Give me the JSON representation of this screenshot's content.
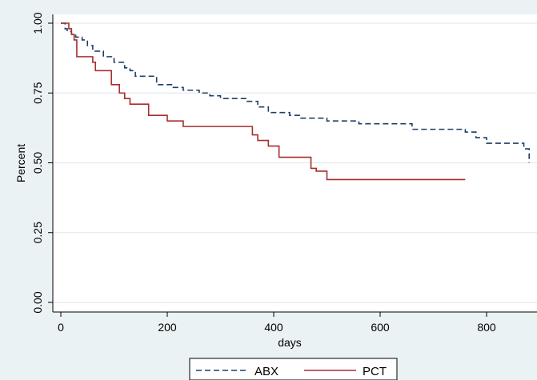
{
  "chart_data": {
    "type": "line",
    "title": "",
    "xlabel": "days",
    "ylabel": "Percent",
    "xlim": [
      0,
      880
    ],
    "ylim": [
      0,
      1
    ],
    "x_ticks": [
      "0",
      "200",
      "400",
      "600",
      "800"
    ],
    "x_tick_values": [
      0,
      200,
      400,
      600,
      800
    ],
    "y_ticks": [
      "0.00",
      "0.25",
      "0.50",
      "0.75",
      "1.00"
    ],
    "y_tick_values": [
      0,
      0.25,
      0.5,
      0.75,
      1.0
    ],
    "grid": true,
    "legend_position": "bottom",
    "step": true,
    "series": [
      {
        "name": "ABX",
        "color": "#1f3f66",
        "style": "dashed",
        "x": [
          0,
          8,
          12,
          20,
          28,
          40,
          50,
          60,
          80,
          100,
          120,
          130,
          140,
          180,
          210,
          230,
          260,
          280,
          300,
          350,
          370,
          390,
          430,
          450,
          500,
          560,
          600,
          660,
          760,
          780,
          800,
          870,
          880
        ],
        "y": [
          1.0,
          0.98,
          0.97,
          0.96,
          0.95,
          0.94,
          0.92,
          0.9,
          0.88,
          0.86,
          0.84,
          0.83,
          0.81,
          0.78,
          0.77,
          0.76,
          0.75,
          0.74,
          0.73,
          0.72,
          0.7,
          0.68,
          0.67,
          0.66,
          0.65,
          0.64,
          0.64,
          0.62,
          0.61,
          0.59,
          0.57,
          0.55,
          0.5
        ]
      },
      {
        "name": "PCT",
        "color": "#a82e2e",
        "style": "solid",
        "x": [
          0,
          15,
          20,
          25,
          30,
          60,
          65,
          95,
          110,
          120,
          130,
          165,
          200,
          230,
          360,
          370,
          390,
          410,
          470,
          480,
          500,
          760
        ],
        "y": [
          1.0,
          0.98,
          0.96,
          0.94,
          0.88,
          0.86,
          0.83,
          0.78,
          0.75,
          0.73,
          0.71,
          0.67,
          0.65,
          0.63,
          0.6,
          0.58,
          0.56,
          0.52,
          0.48,
          0.47,
          0.44,
          0.44
        ]
      }
    ]
  }
}
